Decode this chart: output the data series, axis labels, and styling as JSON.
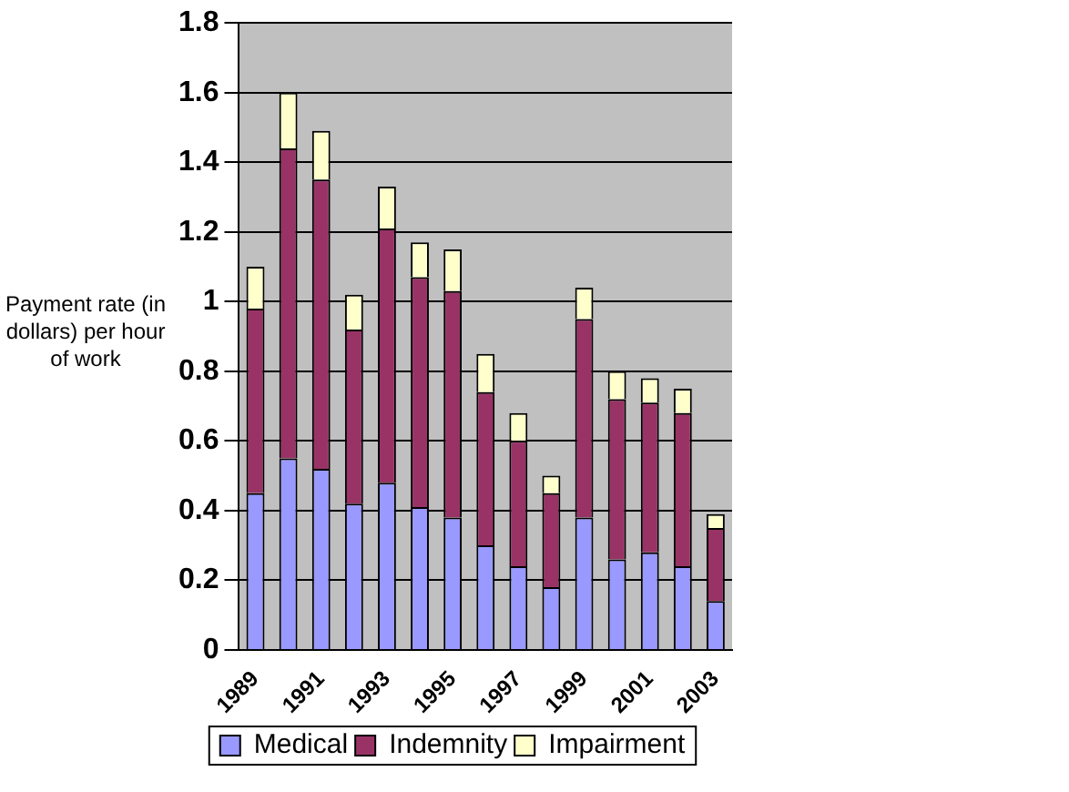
{
  "chart_data": {
    "type": "bar",
    "stacked": true,
    "ylabel": "Payment rate (in dollars) per hour of work",
    "categories": [
      "1989",
      null,
      "1991",
      null,
      "1993",
      null,
      "1995",
      null,
      "1997",
      null,
      "1999",
      null,
      "2001",
      null,
      "2003"
    ],
    "series": [
      {
        "name": "Medical",
        "color": "#9999ff",
        "values": [
          0.45,
          0.55,
          0.52,
          0.42,
          0.48,
          0.41,
          0.38,
          0.3,
          0.24,
          0.18,
          0.38,
          0.26,
          0.28,
          0.24,
          0.14
        ]
      },
      {
        "name": "Indemnity",
        "color": "#993366",
        "values": [
          0.53,
          0.89,
          0.83,
          0.5,
          0.73,
          0.66,
          0.65,
          0.44,
          0.36,
          0.27,
          0.57,
          0.46,
          0.43,
          0.44,
          0.21
        ]
      },
      {
        "name": "Impairment",
        "color": "#ffffcc",
        "values": [
          0.12,
          0.16,
          0.14,
          0.1,
          0.12,
          0.1,
          0.12,
          0.11,
          0.08,
          0.05,
          0.09,
          0.08,
          0.07,
          0.07,
          0.04
        ]
      }
    ],
    "ylim": [
      0,
      1.8
    ],
    "yticks": [
      0,
      0.2,
      0.4,
      0.6,
      0.8,
      1,
      1.2,
      1.4,
      1.6,
      1.8
    ],
    "grid": "y",
    "legend": "bottom"
  }
}
